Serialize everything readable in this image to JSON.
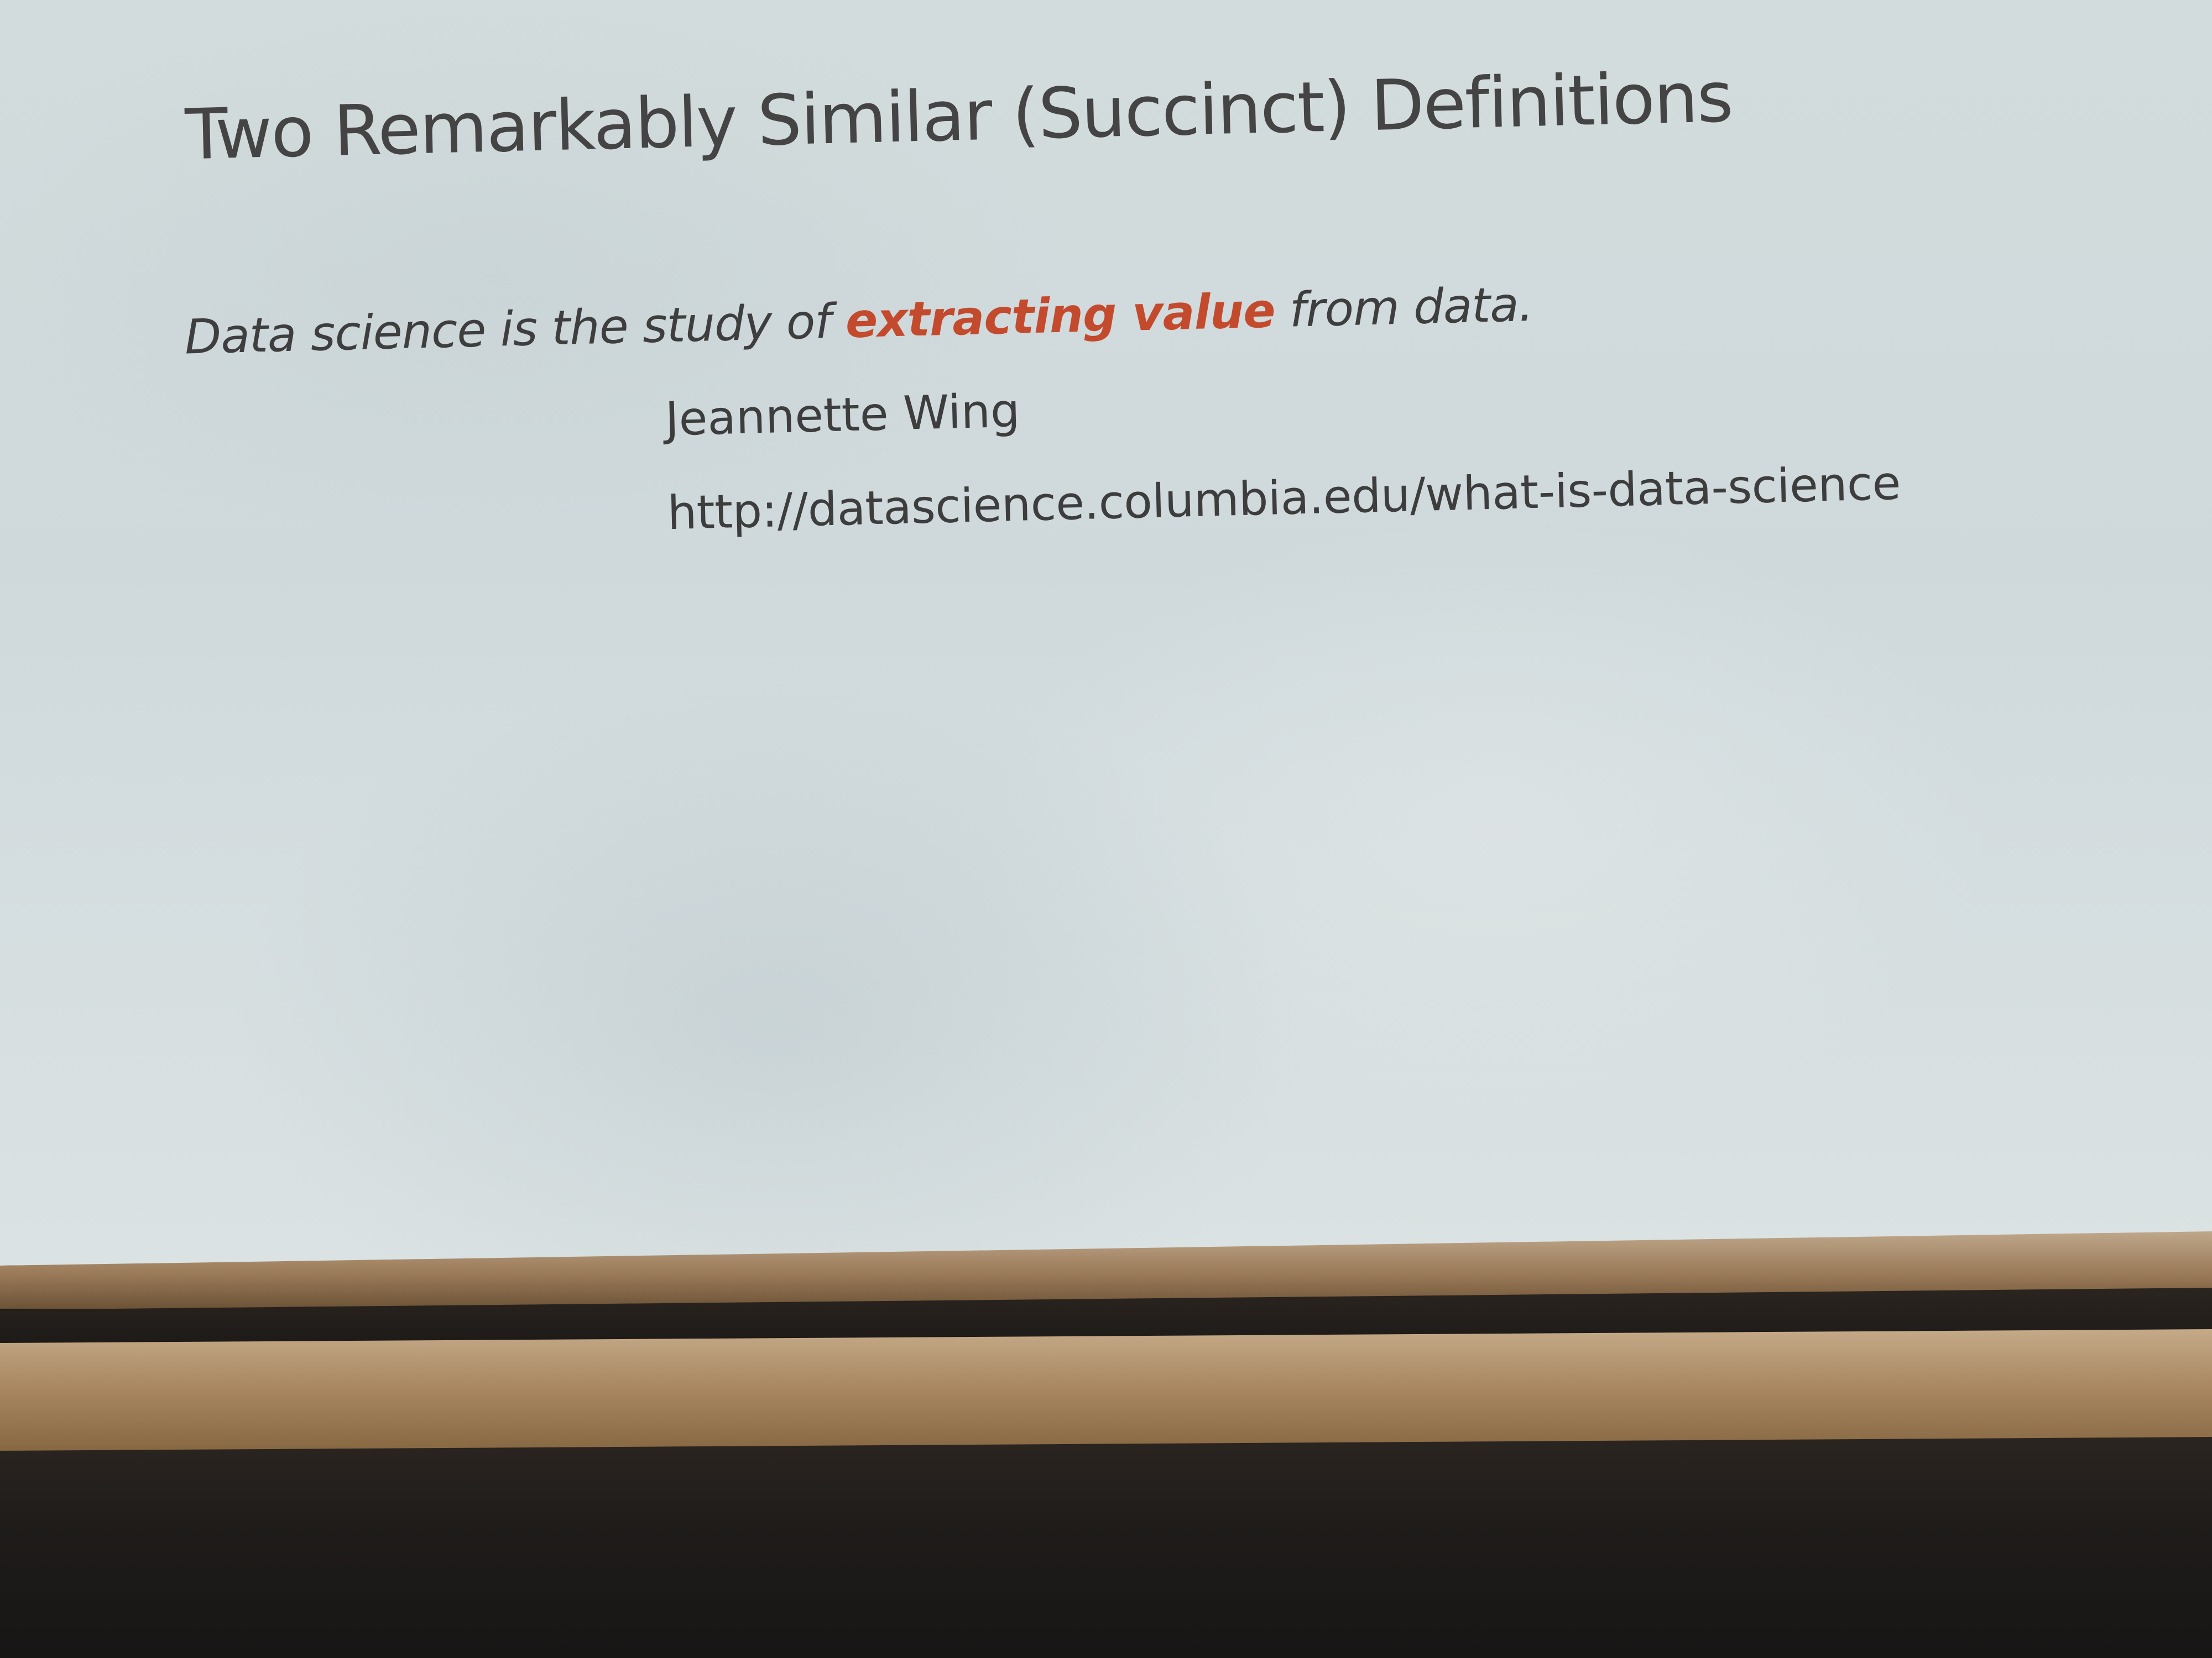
{
  "slide": {
    "title": "Two Remarkably Similar (Succinct) Definitions",
    "quote": {
      "prefix": "Data science is the study of ",
      "highlight": "extracting value",
      "suffix": " from data."
    },
    "author": "Jeannette Wing",
    "url": "http://datascience.columbia.edu/what-is-data-science",
    "colors": {
      "highlight": "#c44a2d",
      "text": "#3f3f3f",
      "screen": "#d3dcdc"
    }
  }
}
